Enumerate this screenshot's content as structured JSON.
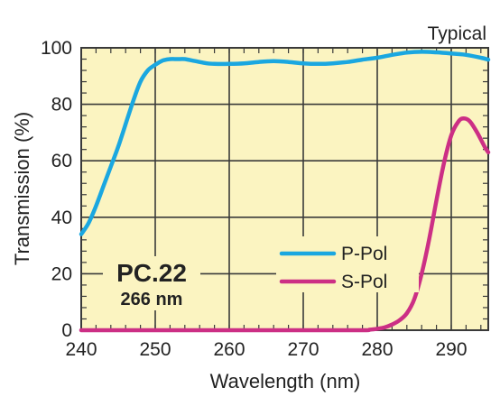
{
  "chart_data": {
    "type": "line",
    "corner_note": "Typical",
    "badge": {
      "title": "PC.22",
      "subtitle": "266 nm"
    },
    "xlabel": "Wavelength (nm)",
    "ylabel": "Transmission (%)",
    "xlim": [
      240,
      295
    ],
    "ylim": [
      0,
      100
    ],
    "x_ticks": [
      240,
      250,
      260,
      270,
      280,
      290
    ],
    "y_ticks": [
      0,
      20,
      40,
      60,
      80,
      100
    ],
    "grid": true,
    "legend_position": "bottom-right",
    "background_color": "#fbf4c1",
    "series": [
      {
        "name": "P-Pol",
        "color": "#1aa7e0",
        "points": [
          [
            240,
            34
          ],
          [
            241,
            38
          ],
          [
            242,
            44
          ],
          [
            243,
            51
          ],
          [
            244,
            58
          ],
          [
            245,
            65
          ],
          [
            246,
            73
          ],
          [
            247,
            81
          ],
          [
            248,
            88
          ],
          [
            249,
            92
          ],
          [
            250,
            94
          ],
          [
            251,
            95.5
          ],
          [
            252,
            96
          ],
          [
            253,
            96
          ],
          [
            254,
            96
          ],
          [
            255,
            95.5
          ],
          [
            256,
            95
          ],
          [
            257,
            94.5
          ],
          [
            258,
            94.3
          ],
          [
            260,
            94.3
          ],
          [
            262,
            94.5
          ],
          [
            264,
            95
          ],
          [
            266,
            95.3
          ],
          [
            268,
            95
          ],
          [
            270,
            94.5
          ],
          [
            272,
            94.3
          ],
          [
            274,
            94.5
          ],
          [
            276,
            95
          ],
          [
            278,
            95.8
          ],
          [
            280,
            96.5
          ],
          [
            282,
            97.5
          ],
          [
            284,
            98.3
          ],
          [
            286,
            98.6
          ],
          [
            288,
            98.4
          ],
          [
            290,
            98
          ],
          [
            292,
            97.5
          ],
          [
            294,
            96.5
          ],
          [
            295,
            95.8
          ]
        ]
      },
      {
        "name": "S-Pol",
        "color": "#cc2f85",
        "points": [
          [
            240,
            0
          ],
          [
            270,
            0
          ],
          [
            278,
            0
          ],
          [
            279,
            0.2
          ],
          [
            280,
            0.5
          ],
          [
            281,
            1
          ],
          [
            282,
            2
          ],
          [
            283,
            3.5
          ],
          [
            284,
            6
          ],
          [
            285,
            11
          ],
          [
            286,
            20
          ],
          [
            287,
            32
          ],
          [
            288,
            46
          ],
          [
            289,
            59
          ],
          [
            290,
            69
          ],
          [
            291,
            74
          ],
          [
            291.7,
            75
          ],
          [
            292.5,
            74
          ],
          [
            293.5,
            70
          ],
          [
            294.5,
            65
          ],
          [
            295,
            63
          ]
        ]
      }
    ]
  }
}
